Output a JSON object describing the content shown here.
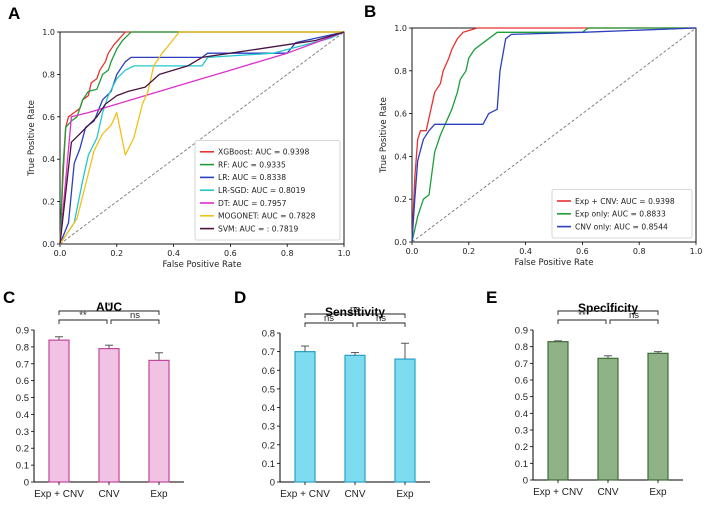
{
  "panels": [
    "A",
    "B",
    "C",
    "D",
    "E"
  ],
  "chart_data": [
    {
      "id": "A",
      "type": "line",
      "xlabel": "False Positive Rate",
      "ylabel": "True Positive Rate",
      "xlim": [
        0,
        1
      ],
      "ylim": [
        0,
        1
      ],
      "xticks": [
        "0.0",
        "0.2",
        "0.4",
        "0.6",
        "0.8",
        "1.0"
      ],
      "yticks": [
        "0.0",
        "0.2",
        "0.4",
        "0.6",
        "0.8",
        "1.0"
      ],
      "legend_position": "bottom-right",
      "diagonal": true,
      "series": [
        {
          "name": "XGBoost: AUC = 0.9398",
          "color": "#e8322f",
          "points": [
            [
              0,
              0
            ],
            [
              0.01,
              0.3
            ],
            [
              0.02,
              0.55
            ],
            [
              0.03,
              0.6
            ],
            [
              0.05,
              0.62
            ],
            [
              0.07,
              0.64
            ],
            [
              0.08,
              0.68
            ],
            [
              0.1,
              0.7
            ],
            [
              0.11,
              0.76
            ],
            [
              0.13,
              0.78
            ],
            [
              0.14,
              0.82
            ],
            [
              0.16,
              0.86
            ],
            [
              0.17,
              0.9
            ],
            [
              0.19,
              0.94
            ],
            [
              0.21,
              0.97
            ],
            [
              0.23,
              1.0
            ],
            [
              1.0,
              1.0
            ]
          ]
        },
        {
          "name": "RF: AUC = 0.9335",
          "color": "#1e9e3a",
          "points": [
            [
              0,
              0
            ],
            [
              0.01,
              0.35
            ],
            [
              0.02,
              0.55
            ],
            [
              0.04,
              0.58
            ],
            [
              0.06,
              0.6
            ],
            [
              0.08,
              0.68
            ],
            [
              0.1,
              0.72
            ],
            [
              0.13,
              0.73
            ],
            [
              0.15,
              0.8
            ],
            [
              0.17,
              0.82
            ],
            [
              0.18,
              0.86
            ],
            [
              0.2,
              0.92
            ],
            [
              0.22,
              0.96
            ],
            [
              0.25,
              1.0
            ],
            [
              1.0,
              1.0
            ]
          ]
        },
        {
          "name": "LR: AUC = 0.8338",
          "color": "#2c3fbf",
          "points": [
            [
              0,
              0
            ],
            [
              0.03,
              0.1
            ],
            [
              0.05,
              0.38
            ],
            [
              0.07,
              0.45
            ],
            [
              0.09,
              0.55
            ],
            [
              0.12,
              0.58
            ],
            [
              0.15,
              0.68
            ],
            [
              0.18,
              0.72
            ],
            [
              0.2,
              0.8
            ],
            [
              0.23,
              0.86
            ],
            [
              0.25,
              0.88
            ],
            [
              0.5,
              0.88
            ],
            [
              0.52,
              0.9
            ],
            [
              0.8,
              0.9
            ],
            [
              0.83,
              0.95
            ],
            [
              1.0,
              1.0
            ]
          ]
        },
        {
          "name": "LR-SGD: AUC = 0.8019",
          "color": "#22c7cf",
          "points": [
            [
              0,
              0
            ],
            [
              0.05,
              0.1
            ],
            [
              0.08,
              0.3
            ],
            [
              0.1,
              0.42
            ],
            [
              0.13,
              0.5
            ],
            [
              0.15,
              0.62
            ],
            [
              0.17,
              0.7
            ],
            [
              0.2,
              0.78
            ],
            [
              0.23,
              0.82
            ],
            [
              0.26,
              0.84
            ],
            [
              0.5,
              0.84
            ],
            [
              0.52,
              0.88
            ],
            [
              0.75,
              0.9
            ],
            [
              0.95,
              0.97
            ],
            [
              1.0,
              1.0
            ]
          ]
        },
        {
          "name": "DT: AUC = 0.7957",
          "color": "#dd30c8",
          "points": [
            [
              0,
              0
            ],
            [
              0.04,
              0.6
            ],
            [
              0.1,
              0.62
            ],
            [
              0.2,
              0.66
            ],
            [
              0.3,
              0.7
            ],
            [
              0.4,
              0.74
            ],
            [
              0.5,
              0.78
            ],
            [
              0.6,
              0.82
            ],
            [
              0.7,
              0.86
            ],
            [
              0.8,
              0.9
            ],
            [
              0.9,
              0.95
            ],
            [
              1.0,
              1.0
            ]
          ]
        },
        {
          "name": "MOGONET: AUC =  0.7828",
          "color": "#f2c018",
          "points": [
            [
              0,
              0
            ],
            [
              0.06,
              0.12
            ],
            [
              0.09,
              0.28
            ],
            [
              0.12,
              0.44
            ],
            [
              0.15,
              0.52
            ],
            [
              0.18,
              0.56
            ],
            [
              0.2,
              0.62
            ],
            [
              0.23,
              0.42
            ],
            [
              0.26,
              0.5
            ],
            [
              0.29,
              0.66
            ],
            [
              0.31,
              0.72
            ],
            [
              0.33,
              0.84
            ],
            [
              0.36,
              0.9
            ],
            [
              0.39,
              0.95
            ],
            [
              0.42,
              1.0
            ],
            [
              1.0,
              1.0
            ]
          ]
        },
        {
          "name": "SVM: AUC = : 0.7819",
          "color": "#4a1340",
          "points": [
            [
              0,
              0
            ],
            [
              0.04,
              0.48
            ],
            [
              0.07,
              0.52
            ],
            [
              0.1,
              0.56
            ],
            [
              0.13,
              0.6
            ],
            [
              0.16,
              0.66
            ],
            [
              0.2,
              0.7
            ],
            [
              0.24,
              0.72
            ],
            [
              0.3,
              0.74
            ],
            [
              0.35,
              0.8
            ],
            [
              0.45,
              0.84
            ],
            [
              0.5,
              0.88
            ],
            [
              0.6,
              0.9
            ],
            [
              0.8,
              0.94
            ],
            [
              0.9,
              0.96
            ],
            [
              1.0,
              1.0
            ]
          ]
        }
      ]
    },
    {
      "id": "B",
      "type": "line",
      "xlabel": "False Positive Rate",
      "ylabel": "True Positive Rate",
      "xlim": [
        0,
        1
      ],
      "ylim": [
        0,
        1
      ],
      "xticks": [
        "0.0",
        "0.2",
        "0.4",
        "0.6",
        "0.8",
        "1.0"
      ],
      "yticks": [
        "0.0",
        "0.2",
        "0.4",
        "0.6",
        "0.8",
        "1.0"
      ],
      "legend_position": "bottom-right",
      "diagonal": true,
      "series": [
        {
          "name": "Exp + CNV: AUC = 0.9398",
          "color": "#e8322f",
          "points": [
            [
              0,
              0
            ],
            [
              0.01,
              0.3
            ],
            [
              0.02,
              0.48
            ],
            [
              0.03,
              0.52
            ],
            [
              0.05,
              0.52
            ],
            [
              0.06,
              0.58
            ],
            [
              0.08,
              0.7
            ],
            [
              0.1,
              0.74
            ],
            [
              0.11,
              0.8
            ],
            [
              0.13,
              0.86
            ],
            [
              0.14,
              0.9
            ],
            [
              0.16,
              0.95
            ],
            [
              0.18,
              0.98
            ],
            [
              0.23,
              1.0
            ],
            [
              1.0,
              1.0
            ]
          ]
        },
        {
          "name": "Exp only: AUC = 0.8833",
          "color": "#1e9e3a",
          "points": [
            [
              0,
              0
            ],
            [
              0.02,
              0.12
            ],
            [
              0.04,
              0.2
            ],
            [
              0.06,
              0.22
            ],
            [
              0.08,
              0.42
            ],
            [
              0.1,
              0.5
            ],
            [
              0.12,
              0.56
            ],
            [
              0.14,
              0.62
            ],
            [
              0.16,
              0.7
            ],
            [
              0.17,
              0.76
            ],
            [
              0.19,
              0.8
            ],
            [
              0.2,
              0.86
            ],
            [
              0.22,
              0.9
            ],
            [
              0.26,
              0.94
            ],
            [
              0.3,
              0.98
            ],
            [
              0.6,
              0.98
            ],
            [
              0.62,
              1.0
            ],
            [
              1.0,
              1.0
            ]
          ]
        },
        {
          "name": "CNV only: AUC = 0.8544",
          "color": "#2c3fbf",
          "points": [
            [
              0,
              0
            ],
            [
              0.01,
              0.2
            ],
            [
              0.02,
              0.38
            ],
            [
              0.04,
              0.48
            ],
            [
              0.06,
              0.52
            ],
            [
              0.08,
              0.55
            ],
            [
              0.25,
              0.55
            ],
            [
              0.27,
              0.6
            ],
            [
              0.3,
              0.62
            ],
            [
              0.31,
              0.8
            ],
            [
              0.33,
              0.95
            ],
            [
              0.35,
              0.97
            ],
            [
              0.6,
              0.98
            ],
            [
              1.0,
              1.0
            ]
          ]
        }
      ]
    },
    {
      "id": "C",
      "type": "bar",
      "title": "AUC",
      "categories": [
        "Exp + CNV",
        "CNV",
        "Exp"
      ],
      "values": [
        0.84,
        0.79,
        0.72
      ],
      "errors": [
        0.02,
        0.02,
        0.045
      ],
      "ylim": [
        0,
        0.9
      ],
      "yticks": [
        "0",
        "0.1",
        "0.2",
        "0.3",
        "0.4",
        "0.5",
        "0.6",
        "0.7",
        "0.8",
        "0.9"
      ],
      "bar_color": "#f1c2e4",
      "edge_color": "#c0479a",
      "significance": [
        {
          "from": 0,
          "to": 1,
          "label": "**",
          "level": 0
        },
        {
          "from": 1,
          "to": 2,
          "label": "ns",
          "level": 0
        },
        {
          "from": 0,
          "to": 2,
          "label": "*",
          "level": 1
        }
      ]
    },
    {
      "id": "D",
      "type": "bar",
      "title": "Sensitivity",
      "categories": [
        "Exp + CNV",
        "CNV",
        "Exp"
      ],
      "values": [
        0.7,
        0.68,
        0.66
      ],
      "errors": [
        0.03,
        0.015,
        0.085
      ],
      "ylim": [
        0,
        0.8
      ],
      "yticks": [
        "0",
        "0.1",
        "0.2",
        "0.3",
        "0.4",
        "0.5",
        "0.6",
        "0.7",
        "0.8"
      ],
      "bar_color": "#7ddcf0",
      "edge_color": "#2aa0c8",
      "significance": [
        {
          "from": 0,
          "to": 1,
          "label": "ns",
          "level": 0
        },
        {
          "from": 1,
          "to": 2,
          "label": "ns",
          "level": 0
        },
        {
          "from": 0,
          "to": 2,
          "label": "ns",
          "level": 1
        }
      ]
    },
    {
      "id": "E",
      "type": "bar",
      "title": "Specificity",
      "categories": [
        "Exp + CNV",
        "CNV",
        "Exp"
      ],
      "values": [
        0.83,
        0.73,
        0.76
      ],
      "errors": [
        0.005,
        0.015,
        0.01
      ],
      "ylim": [
        0,
        0.9
      ],
      "yticks": [
        "0",
        "0.1",
        "0.2",
        "0.3",
        "0.4",
        "0.5",
        "0.6",
        "0.7",
        "0.8",
        "0.9"
      ],
      "bar_color": "#8fb287",
      "edge_color": "#3e6e37",
      "significance": [
        {
          "from": 0,
          "to": 1,
          "label": "**",
          "level": 0
        },
        {
          "from": 1,
          "to": 2,
          "label": "ns",
          "level": 0
        },
        {
          "from": 0,
          "to": 2,
          "label": "*",
          "level": 1
        }
      ]
    }
  ]
}
